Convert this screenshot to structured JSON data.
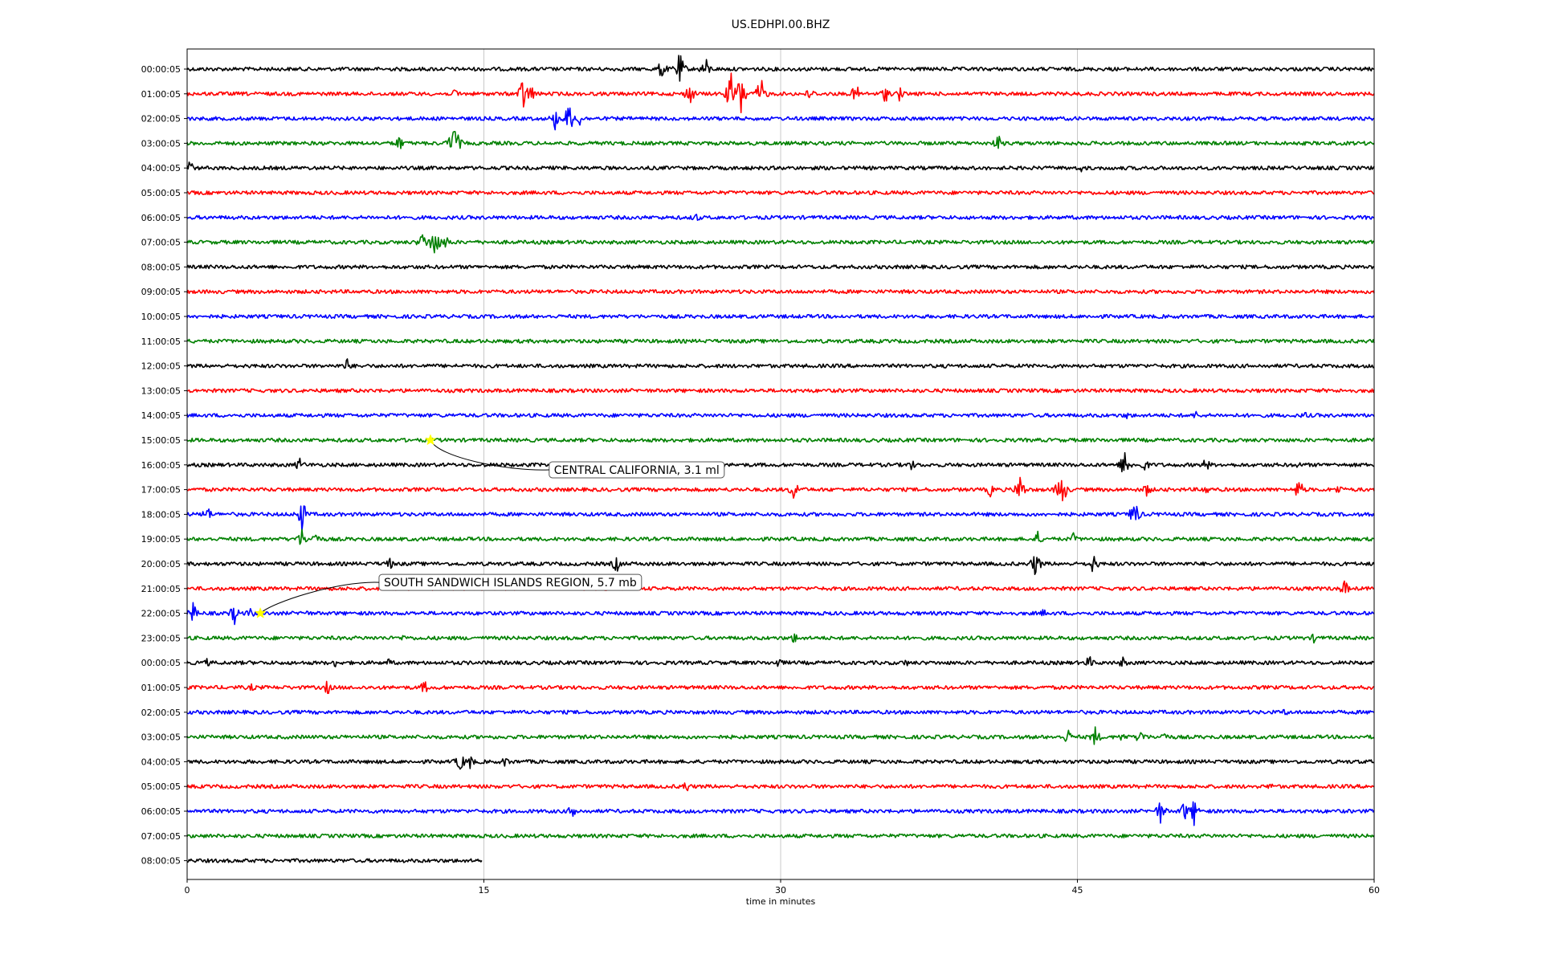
{
  "chart_data": {
    "type": "line",
    "title": "US.EDHPI.00.BHZ",
    "xlabel": "time in minutes",
    "ylabel": "",
    "xlim": [
      0,
      60
    ],
    "x_ticks": [
      0,
      15,
      30,
      45,
      60
    ],
    "grid": "vertical lines at 15-minute ticks",
    "trace_colors": [
      "#000000",
      "#ff0000",
      "#0000ff",
      "#008000"
    ],
    "row_labels": [
      "00:00:05",
      "01:00:05",
      "02:00:05",
      "03:00:05",
      "04:00:05",
      "05:00:05",
      "06:00:05",
      "07:00:05",
      "08:00:05",
      "09:00:05",
      "10:00:05",
      "11:00:05",
      "12:00:05",
      "13:00:05",
      "14:00:05",
      "15:00:05",
      "16:00:05",
      "17:00:05",
      "18:00:05",
      "19:00:05",
      "20:00:05",
      "21:00:05",
      "22:00:05",
      "23:00:05",
      "00:00:05",
      "01:00:05",
      "02:00:05",
      "03:00:05",
      "04:00:05",
      "05:00:05",
      "06:00:05",
      "07:00:05",
      "08:00:05"
    ],
    "last_row_end_minute": 14.9,
    "bursts": [
      {
        "row": 0,
        "t": 24.0,
        "a": 14
      },
      {
        "row": 0,
        "t": 24.9,
        "a": 22
      },
      {
        "row": 0,
        "t": 26.2,
        "a": 16
      },
      {
        "row": 1,
        "t": 13.6,
        "a": 8
      },
      {
        "row": 1,
        "t": 17.0,
        "a": 24
      },
      {
        "row": 1,
        "t": 17.4,
        "a": 12
      },
      {
        "row": 1,
        "t": 25.4,
        "a": 16
      },
      {
        "row": 1,
        "t": 27.5,
        "a": 28
      },
      {
        "row": 1,
        "t": 28.0,
        "a": 30
      },
      {
        "row": 1,
        "t": 29.0,
        "a": 22
      },
      {
        "row": 1,
        "t": 31.5,
        "a": 10
      },
      {
        "row": 1,
        "t": 33.8,
        "a": 14
      },
      {
        "row": 1,
        "t": 35.3,
        "a": 12
      },
      {
        "row": 1,
        "t": 36.0,
        "a": 10
      },
      {
        "row": 2,
        "t": 18.6,
        "a": 14
      },
      {
        "row": 2,
        "t": 19.3,
        "a": 22
      },
      {
        "row": 2,
        "t": 19.8,
        "a": 12
      },
      {
        "row": 3,
        "t": 10.7,
        "a": 12
      },
      {
        "row": 3,
        "t": 13.5,
        "a": 28
      },
      {
        "row": 3,
        "t": 41.0,
        "a": 12
      },
      {
        "row": 4,
        "t": 0.1,
        "a": 12
      },
      {
        "row": 4,
        "t": 45.2,
        "a": 6
      },
      {
        "row": 6,
        "t": 25.7,
        "a": 8
      },
      {
        "row": 7,
        "t": 11.9,
        "a": 14
      },
      {
        "row": 7,
        "t": 12.5,
        "a": 24
      },
      {
        "row": 7,
        "t": 13.1,
        "a": 10
      },
      {
        "row": 12,
        "t": 8.1,
        "a": 10
      },
      {
        "row": 14,
        "t": 47.5,
        "a": 6
      },
      {
        "row": 14,
        "t": 51.0,
        "a": 6
      },
      {
        "row": 14,
        "t": 56.5,
        "a": 6
      },
      {
        "row": 16,
        "t": 5.7,
        "a": 10
      },
      {
        "row": 16,
        "t": 36.6,
        "a": 8
      },
      {
        "row": 16,
        "t": 47.4,
        "a": 20
      },
      {
        "row": 16,
        "t": 48.4,
        "a": 10
      },
      {
        "row": 16,
        "t": 51.5,
        "a": 10
      },
      {
        "row": 16,
        "t": 56.1,
        "a": 6
      },
      {
        "row": 17,
        "t": 30.7,
        "a": 16
      },
      {
        "row": 17,
        "t": 40.6,
        "a": 10
      },
      {
        "row": 17,
        "t": 42.1,
        "a": 20
      },
      {
        "row": 17,
        "t": 44.2,
        "a": 26
      },
      {
        "row": 17,
        "t": 48.5,
        "a": 10
      },
      {
        "row": 17,
        "t": 51.5,
        "a": 8
      },
      {
        "row": 17,
        "t": 56.2,
        "a": 16
      },
      {
        "row": 17,
        "t": 58.2,
        "a": 8
      },
      {
        "row": 18,
        "t": 1.0,
        "a": 12
      },
      {
        "row": 18,
        "t": 5.8,
        "a": 22
      },
      {
        "row": 18,
        "t": 47.9,
        "a": 20
      },
      {
        "row": 19,
        "t": 5.8,
        "a": 14
      },
      {
        "row": 19,
        "t": 6.5,
        "a": 10
      },
      {
        "row": 19,
        "t": 43.0,
        "a": 10
      },
      {
        "row": 19,
        "t": 44.8,
        "a": 8
      },
      {
        "row": 20,
        "t": 10.2,
        "a": 10
      },
      {
        "row": 20,
        "t": 21.7,
        "a": 12
      },
      {
        "row": 20,
        "t": 42.9,
        "a": 18
      },
      {
        "row": 20,
        "t": 45.8,
        "a": 14
      },
      {
        "row": 21,
        "t": 58.5,
        "a": 12
      },
      {
        "row": 22,
        "t": 0.3,
        "a": 14
      },
      {
        "row": 22,
        "t": 2.4,
        "a": 14
      },
      {
        "row": 22,
        "t": 3.2,
        "a": 8
      },
      {
        "row": 22,
        "t": 5.9,
        "a": 8
      },
      {
        "row": 22,
        "t": 43.3,
        "a": 6
      },
      {
        "row": 23,
        "t": 11.0,
        "a": 6
      },
      {
        "row": 23,
        "t": 30.7,
        "a": 8
      },
      {
        "row": 23,
        "t": 57.0,
        "a": 8
      },
      {
        "row": 24,
        "t": 1.0,
        "a": 6
      },
      {
        "row": 24,
        "t": 7.5,
        "a": 6
      },
      {
        "row": 24,
        "t": 10.2,
        "a": 6
      },
      {
        "row": 24,
        "t": 29.9,
        "a": 8
      },
      {
        "row": 24,
        "t": 36.3,
        "a": 6
      },
      {
        "row": 24,
        "t": 45.6,
        "a": 10
      },
      {
        "row": 24,
        "t": 47.3,
        "a": 8
      },
      {
        "row": 25,
        "t": 3.3,
        "a": 6
      },
      {
        "row": 25,
        "t": 7.1,
        "a": 10
      },
      {
        "row": 25,
        "t": 12.0,
        "a": 10
      },
      {
        "row": 26,
        "t": 55.5,
        "a": 6
      },
      {
        "row": 27,
        "t": 44.5,
        "a": 12
      },
      {
        "row": 27,
        "t": 45.9,
        "a": 14
      },
      {
        "row": 27,
        "t": 47.3,
        "a": 8
      },
      {
        "row": 27,
        "t": 48.2,
        "a": 12
      },
      {
        "row": 27,
        "t": 49.4,
        "a": 8
      },
      {
        "row": 28,
        "t": 13.8,
        "a": 14
      },
      {
        "row": 28,
        "t": 14.3,
        "a": 10
      },
      {
        "row": 28,
        "t": 16.1,
        "a": 8
      },
      {
        "row": 29,
        "t": 25.2,
        "a": 10
      },
      {
        "row": 29,
        "t": 54.8,
        "a": 6
      },
      {
        "row": 30,
        "t": 19.5,
        "a": 12
      },
      {
        "row": 30,
        "t": 49.2,
        "a": 16
      },
      {
        "row": 30,
        "t": 50.4,
        "a": 14
      },
      {
        "row": 30,
        "t": 50.9,
        "a": 18
      }
    ],
    "events": [
      {
        "row": 15,
        "t": 12.3,
        "label": "CENTRAL CALIFORNIA, 3.1 ml",
        "box_t": 18.3,
        "box_row": 16.2
      },
      {
        "row": 22,
        "t": 3.7,
        "label": "SOUTH SANDWICH ISLANDS REGION, 5.7 mb",
        "box_t": 9.7,
        "box_row": 20.75
      }
    ],
    "marker_color": "#ffff00"
  }
}
